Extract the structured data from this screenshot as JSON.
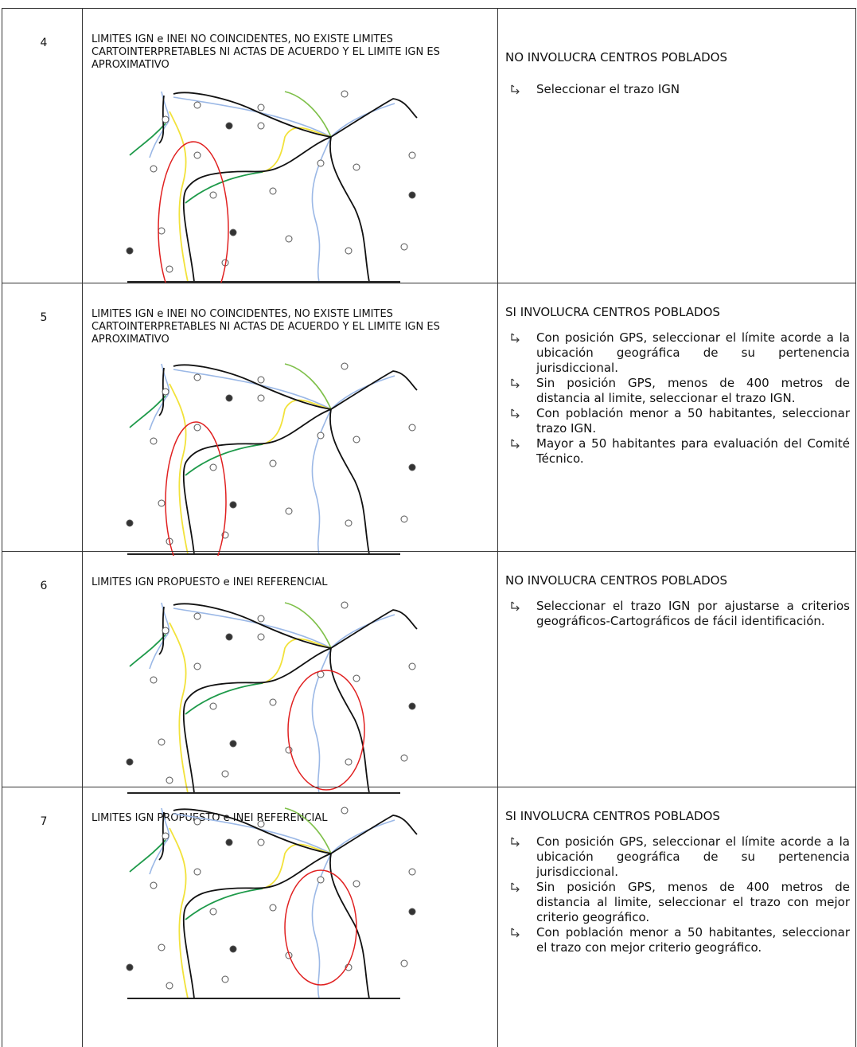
{
  "table": {
    "rows": [
      {
        "number": "4",
        "description": "LIMITES IGN e INEI NO COINCIDENTES, NO EXISTE LIMITES CARTOINTERPRETABLES NI ACTAS DE ACUERDO Y EL LIMITE IGN ES APROXIMATIVO",
        "heading": "NO INVOLUCRA CENTROS POBLADOS",
        "bullets": [
          "Seleccionar el trazo IGN"
        ]
      },
      {
        "number": "5",
        "description": "LIMITES IGN e INEI NO COINCIDENTES, NO EXISTE LIMITES CARTOINTERPRETABLES NI ACTAS DE ACUERDO Y EL LIMITE IGN ES APROXIMATIVO",
        "heading": "SI INVOLUCRA CENTROS POBLADOS",
        "bullets": [
          "Con posición GPS, seleccionar el límite acorde a la ubicación geográfica de su pertenencia jurisdiccional.",
          "Sin posición GPS, menos de 400 metros de distancia al limite, seleccionar el trazo IGN.",
          "Con población menor a 50 habitantes, seleccionar trazo IGN.",
          "Mayor a 50 habitantes para evaluación del Comité Técnico."
        ]
      },
      {
        "number": "6",
        "description": "LIMITES IGN PROPUESTO e INEI REFERENCIAL",
        "heading": "NO INVOLUCRA CENTROS POBLADOS",
        "bullets": [
          "Seleccionar el trazo IGN por ajustarse a criterios geográficos-Cartográficos de fácil identificación."
        ]
      },
      {
        "number": "7",
        "description": "LIMITES IGN PROPUESTO e INEI REFERENCIAL",
        "heading": "SI INVOLUCRA CENTROS POBLADOS",
        "bullets": [
          "Con posición GPS, seleccionar el límite acorde a la ubicación geográfica de su pertenencia jurisdiccional.",
          "Sin posición GPS, menos de 400 metros de distancia al limite, seleccionar el trazo con mejor criterio geográfico.",
          "Con población menor a 50 habitantes, seleccionar el trazo con mejor criterio geográfico."
        ]
      }
    ]
  }
}
